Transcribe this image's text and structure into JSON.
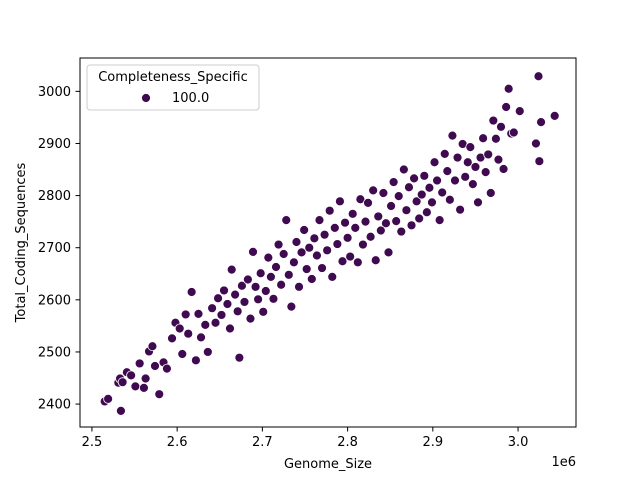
{
  "chart_data": {
    "type": "scatter",
    "xlabel": "Genome_Size",
    "ylabel": "Total_Coding_Sequences",
    "x_offset_label": "1e6",
    "xlim": [
      2.486,
      3.068
    ],
    "ylim": [
      2356,
      3064
    ],
    "xticks": [
      2.5,
      2.6,
      2.7,
      2.8,
      2.9,
      3.0
    ],
    "xtick_labels": [
      "2.5",
      "2.6",
      "2.7",
      "2.8",
      "2.9",
      "3.0"
    ],
    "yticks": [
      2400,
      2500,
      2600,
      2700,
      2800,
      2900,
      3000
    ],
    "ytick_labels": [
      "2400",
      "2500",
      "2600",
      "2700",
      "2800",
      "2900",
      "3000"
    ],
    "grid": false,
    "legend": {
      "title": "Completeness_Specific",
      "placement": "top-left",
      "entries": [
        {
          "label": "100.0",
          "color": "#3f0a4f"
        }
      ]
    },
    "series": [
      {
        "name": "100.0",
        "color": "#3f0a4f",
        "points": [
          [
            2.515,
            2405
          ],
          [
            2.519,
            2410
          ],
          [
            2.531,
            2441
          ],
          [
            2.533,
            2449
          ],
          [
            2.534,
            2387
          ],
          [
            2.536,
            2442
          ],
          [
            2.541,
            2461
          ],
          [
            2.546,
            2455
          ],
          [
            2.551,
            2434
          ],
          [
            2.556,
            2478
          ],
          [
            2.561,
            2431
          ],
          [
            2.563,
            2449
          ],
          [
            2.567,
            2501
          ],
          [
            2.571,
            2511
          ],
          [
            2.574,
            2473
          ],
          [
            2.579,
            2419
          ],
          [
            2.584,
            2480
          ],
          [
            2.588,
            2468
          ],
          [
            2.594,
            2526
          ],
          [
            2.598,
            2556
          ],
          [
            2.603,
            2545
          ],
          [
            2.606,
            2496
          ],
          [
            2.61,
            2572
          ],
          [
            2.613,
            2535
          ],
          [
            2.617,
            2615
          ],
          [
            2.622,
            2484
          ],
          [
            2.625,
            2573
          ],
          [
            2.628,
            2528
          ],
          [
            2.633,
            2552
          ],
          [
            2.636,
            2500
          ],
          [
            2.641,
            2584
          ],
          [
            2.645,
            2556
          ],
          [
            2.648,
            2603
          ],
          [
            2.652,
            2571
          ],
          [
            2.655,
            2618
          ],
          [
            2.659,
            2592
          ],
          [
            2.662,
            2545
          ],
          [
            2.664,
            2658
          ],
          [
            2.668,
            2610
          ],
          [
            2.671,
            2578
          ],
          [
            2.673,
            2489
          ],
          [
            2.676,
            2627
          ],
          [
            2.679,
            2596
          ],
          [
            2.683,
            2639
          ],
          [
            2.686,
            2564
          ],
          [
            2.689,
            2692
          ],
          [
            2.692,
            2625
          ],
          [
            2.695,
            2601
          ],
          [
            2.698,
            2651
          ],
          [
            2.701,
            2577
          ],
          [
            2.704,
            2617
          ],
          [
            2.707,
            2681
          ],
          [
            2.71,
            2644
          ],
          [
            2.713,
            2602
          ],
          [
            2.716,
            2663
          ],
          [
            2.719,
            2706
          ],
          [
            2.722,
            2629
          ],
          [
            2.725,
            2688
          ],
          [
            2.728,
            2753
          ],
          [
            2.731,
            2648
          ],
          [
            2.734,
            2587
          ],
          [
            2.737,
            2672
          ],
          [
            2.74,
            2711
          ],
          [
            2.743,
            2625
          ],
          [
            2.746,
            2691
          ],
          [
            2.749,
            2734
          ],
          [
            2.752,
            2659
          ],
          [
            2.755,
            2700
          ],
          [
            2.758,
            2640
          ],
          [
            2.761,
            2718
          ],
          [
            2.764,
            2685
          ],
          [
            2.767,
            2753
          ],
          [
            2.77,
            2661
          ],
          [
            2.773,
            2725
          ],
          [
            2.776,
            2695
          ],
          [
            2.779,
            2771
          ],
          [
            2.782,
            2644
          ],
          [
            2.785,
            2738
          ],
          [
            2.788,
            2707
          ],
          [
            2.791,
            2789
          ],
          [
            2.794,
            2674
          ],
          [
            2.797,
            2748
          ],
          [
            2.8,
            2719
          ],
          [
            2.803,
            2683
          ],
          [
            2.806,
            2765
          ],
          [
            2.809,
            2738
          ],
          [
            2.812,
            2672
          ],
          [
            2.815,
            2793
          ],
          [
            2.818,
            2706
          ],
          [
            2.821,
            2750
          ],
          [
            2.824,
            2786
          ],
          [
            2.827,
            2721
          ],
          [
            2.83,
            2810
          ],
          [
            2.833,
            2676
          ],
          [
            2.836,
            2760
          ],
          [
            2.839,
            2733
          ],
          [
            2.842,
            2805
          ],
          [
            2.845,
            2747
          ],
          [
            2.848,
            2691
          ],
          [
            2.851,
            2780
          ],
          [
            2.854,
            2826
          ],
          [
            2.857,
            2751
          ],
          [
            2.86,
            2799
          ],
          [
            2.863,
            2731
          ],
          [
            2.866,
            2850
          ],
          [
            2.869,
            2772
          ],
          [
            2.872,
            2816
          ],
          [
            2.875,
            2743
          ],
          [
            2.878,
            2833
          ],
          [
            2.881,
            2789
          ],
          [
            2.884,
            2756
          ],
          [
            2.887,
            2802
          ],
          [
            2.89,
            2838
          ],
          [
            2.893,
            2768
          ],
          [
            2.896,
            2815
          ],
          [
            2.899,
            2787
          ],
          [
            2.902,
            2864
          ],
          [
            2.905,
            2829
          ],
          [
            2.908,
            2753
          ],
          [
            2.911,
            2806
          ],
          [
            2.914,
            2880
          ],
          [
            2.917,
            2847
          ],
          [
            2.92,
            2792
          ],
          [
            2.923,
            2915
          ],
          [
            2.926,
            2829
          ],
          [
            2.929,
            2873
          ],
          [
            2.932,
            2773
          ],
          [
            2.935,
            2899
          ],
          [
            2.938,
            2836
          ],
          [
            2.941,
            2864
          ],
          [
            2.944,
            2893
          ],
          [
            2.947,
            2822
          ],
          [
            2.95,
            2855
          ],
          [
            2.953,
            2787
          ],
          [
            2.956,
            2873
          ],
          [
            2.959,
            2910
          ],
          [
            2.962,
            2845
          ],
          [
            2.965,
            2879
          ],
          [
            2.968,
            2805
          ],
          [
            2.971,
            2944
          ],
          [
            2.974,
            2909
          ],
          [
            2.977,
            2869
          ],
          [
            2.98,
            2932
          ],
          [
            2.983,
            2851
          ],
          [
            2.986,
            2970
          ],
          [
            2.989,
            3005
          ],
          [
            2.992,
            2919
          ],
          [
            2.995,
            2921
          ],
          [
            3.002,
            2962
          ],
          [
            3.021,
            2900
          ],
          [
            3.024,
            3029
          ],
          [
            3.025,
            2866
          ],
          [
            3.027,
            2941
          ],
          [
            3.043,
            2953
          ]
        ]
      }
    ]
  }
}
